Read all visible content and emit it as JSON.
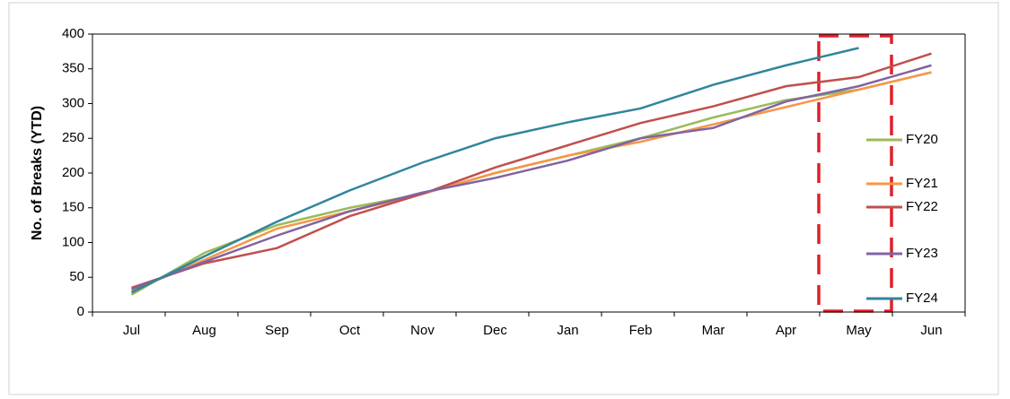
{
  "chart_data": {
    "type": "line",
    "y_label": "No. of Breaks (YTD)",
    "categories": [
      "Jul",
      "Aug",
      "Sep",
      "Oct",
      "Nov",
      "Dec",
      "Jan",
      "Feb",
      "Mar",
      "Apr",
      "May",
      "Jun"
    ],
    "series": [
      {
        "name": "FY20",
        "color": "#9bbb59",
        "values": [
          25,
          85,
          125,
          150,
          170,
          200,
          225,
          250,
          280,
          305,
          320,
          345
        ]
      },
      {
        "name": "FY21",
        "color": "#f79646",
        "values": [
          30,
          75,
          120,
          145,
          170,
          200,
          225,
          245,
          270,
          295,
          320,
          345
        ]
      },
      {
        "name": "FY22",
        "color": "#c0504d",
        "values": [
          35,
          70,
          92,
          138,
          170,
          208,
          240,
          272,
          296,
          325,
          338,
          372
        ]
      },
      {
        "name": "FY23",
        "color": "#8064a2",
        "values": [
          33,
          72,
          110,
          145,
          172,
          193,
          218,
          250,
          265,
          303,
          325,
          355
        ]
      },
      {
        "name": "FY24",
        "color": "#31859c",
        "values": [
          28,
          80,
          130,
          175,
          215,
          250,
          273,
          293,
          327,
          355,
          380,
          null
        ]
      }
    ],
    "ylim": [
      0,
      400
    ],
    "yticks": [
      0,
      50,
      100,
      150,
      200,
      250,
      300,
      350,
      400
    ],
    "legend": "right",
    "grid": false
  }
}
